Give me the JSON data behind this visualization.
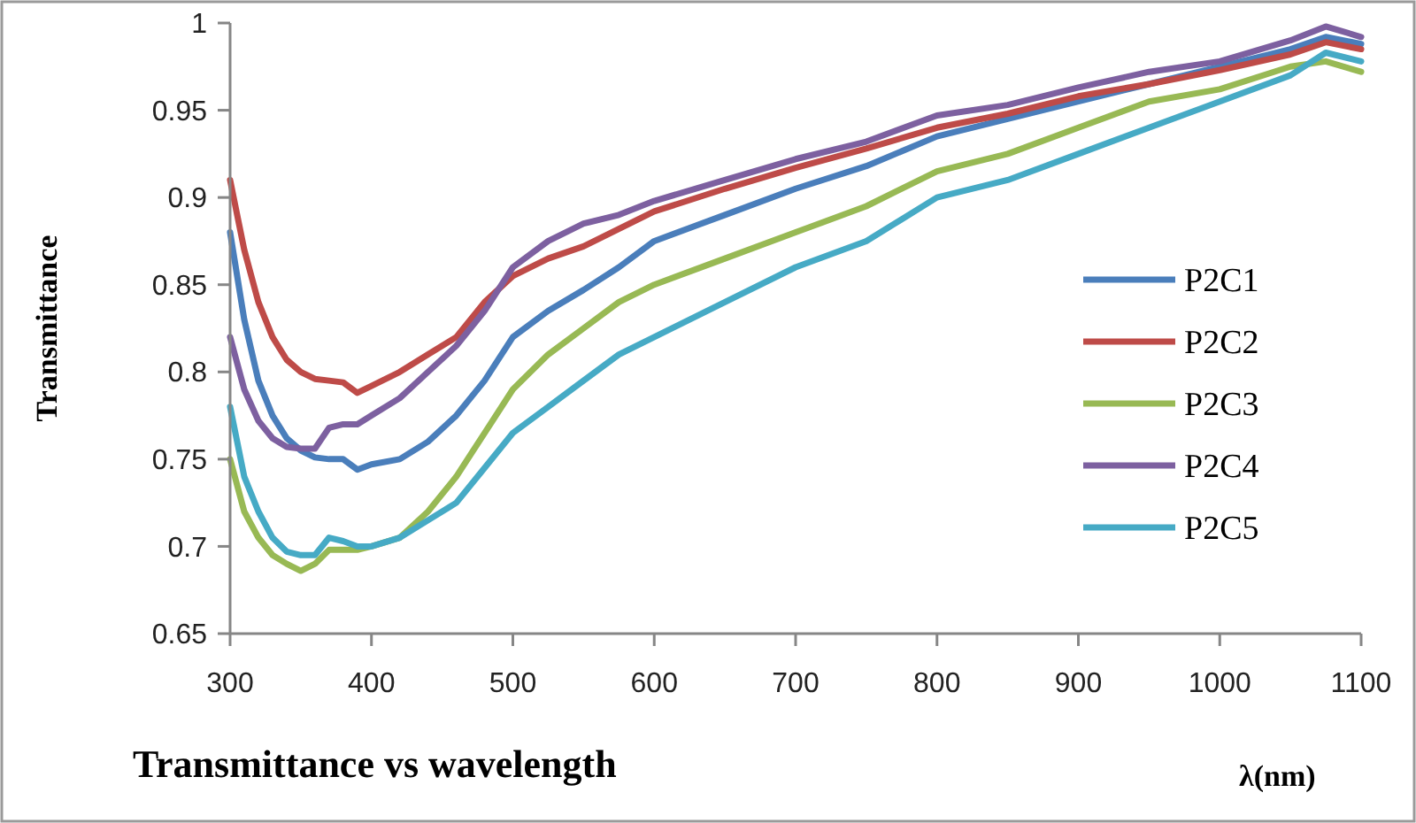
{
  "chart_data": {
    "type": "line",
    "title": "Transmittance  vs wavelength",
    "xlabel": "λ(nm)",
    "ylabel": "Transmittance",
    "x": [
      300,
      310,
      320,
      330,
      340,
      350,
      360,
      370,
      380,
      390,
      400,
      420,
      440,
      460,
      480,
      500,
      525,
      550,
      575,
      600,
      650,
      700,
      750,
      800,
      850,
      900,
      950,
      1000,
      1050,
      1075,
      1100
    ],
    "series": [
      {
        "name": "P2C1",
        "color": "#4a7ebb",
        "values": [
          0.88,
          0.83,
          0.795,
          0.775,
          0.762,
          0.755,
          0.751,
          0.75,
          0.75,
          0.744,
          0.747,
          0.75,
          0.76,
          0.775,
          0.795,
          0.82,
          0.835,
          0.847,
          0.86,
          0.875,
          0.89,
          0.905,
          0.918,
          0.935,
          0.945,
          0.955,
          0.965,
          0.975,
          0.985,
          0.992,
          0.988
        ]
      },
      {
        "name": "P2C2",
        "color": "#be4b48",
        "values": [
          0.91,
          0.87,
          0.84,
          0.82,
          0.807,
          0.8,
          0.796,
          0.795,
          0.794,
          0.788,
          0.792,
          0.8,
          0.81,
          0.82,
          0.84,
          0.855,
          0.865,
          0.872,
          0.882,
          0.892,
          0.905,
          0.917,
          0.928,
          0.94,
          0.948,
          0.958,
          0.965,
          0.973,
          0.982,
          0.989,
          0.985
        ]
      },
      {
        "name": "P2C3",
        "color": "#98b954",
        "values": [
          0.75,
          0.72,
          0.705,
          0.695,
          0.69,
          0.686,
          0.69,
          0.698,
          0.698,
          0.698,
          0.7,
          0.705,
          0.72,
          0.74,
          0.765,
          0.79,
          0.81,
          0.825,
          0.84,
          0.85,
          0.865,
          0.88,
          0.895,
          0.915,
          0.925,
          0.94,
          0.955,
          0.962,
          0.975,
          0.978,
          0.972
        ]
      },
      {
        "name": "P2C4",
        "color": "#7d60a0",
        "values": [
          0.82,
          0.79,
          0.772,
          0.762,
          0.757,
          0.756,
          0.756,
          0.768,
          0.77,
          0.77,
          0.775,
          0.785,
          0.8,
          0.815,
          0.835,
          0.86,
          0.875,
          0.885,
          0.89,
          0.898,
          0.91,
          0.922,
          0.932,
          0.947,
          0.953,
          0.963,
          0.972,
          0.978,
          0.99,
          0.998,
          0.992
        ]
      },
      {
        "name": "P2C5",
        "color": "#46aac5",
        "values": [
          0.78,
          0.74,
          0.72,
          0.705,
          0.697,
          0.695,
          0.695,
          0.705,
          0.703,
          0.7,
          0.7,
          0.705,
          0.715,
          0.725,
          0.745,
          0.765,
          0.78,
          0.795,
          0.81,
          0.82,
          0.84,
          0.86,
          0.875,
          0.9,
          0.91,
          0.925,
          0.94,
          0.955,
          0.97,
          0.983,
          0.978
        ]
      }
    ],
    "xlim": [
      300,
      1100
    ],
    "xticks": [
      300,
      400,
      500,
      600,
      700,
      800,
      900,
      1000,
      1100
    ],
    "ylim": [
      0.65,
      1
    ],
    "yticks": [
      0.65,
      0.7,
      0.75,
      0.8,
      0.85,
      0.9,
      0.95,
      1
    ],
    "grid": false,
    "legend": "right",
    "marker": "none",
    "line_style": "solid"
  }
}
